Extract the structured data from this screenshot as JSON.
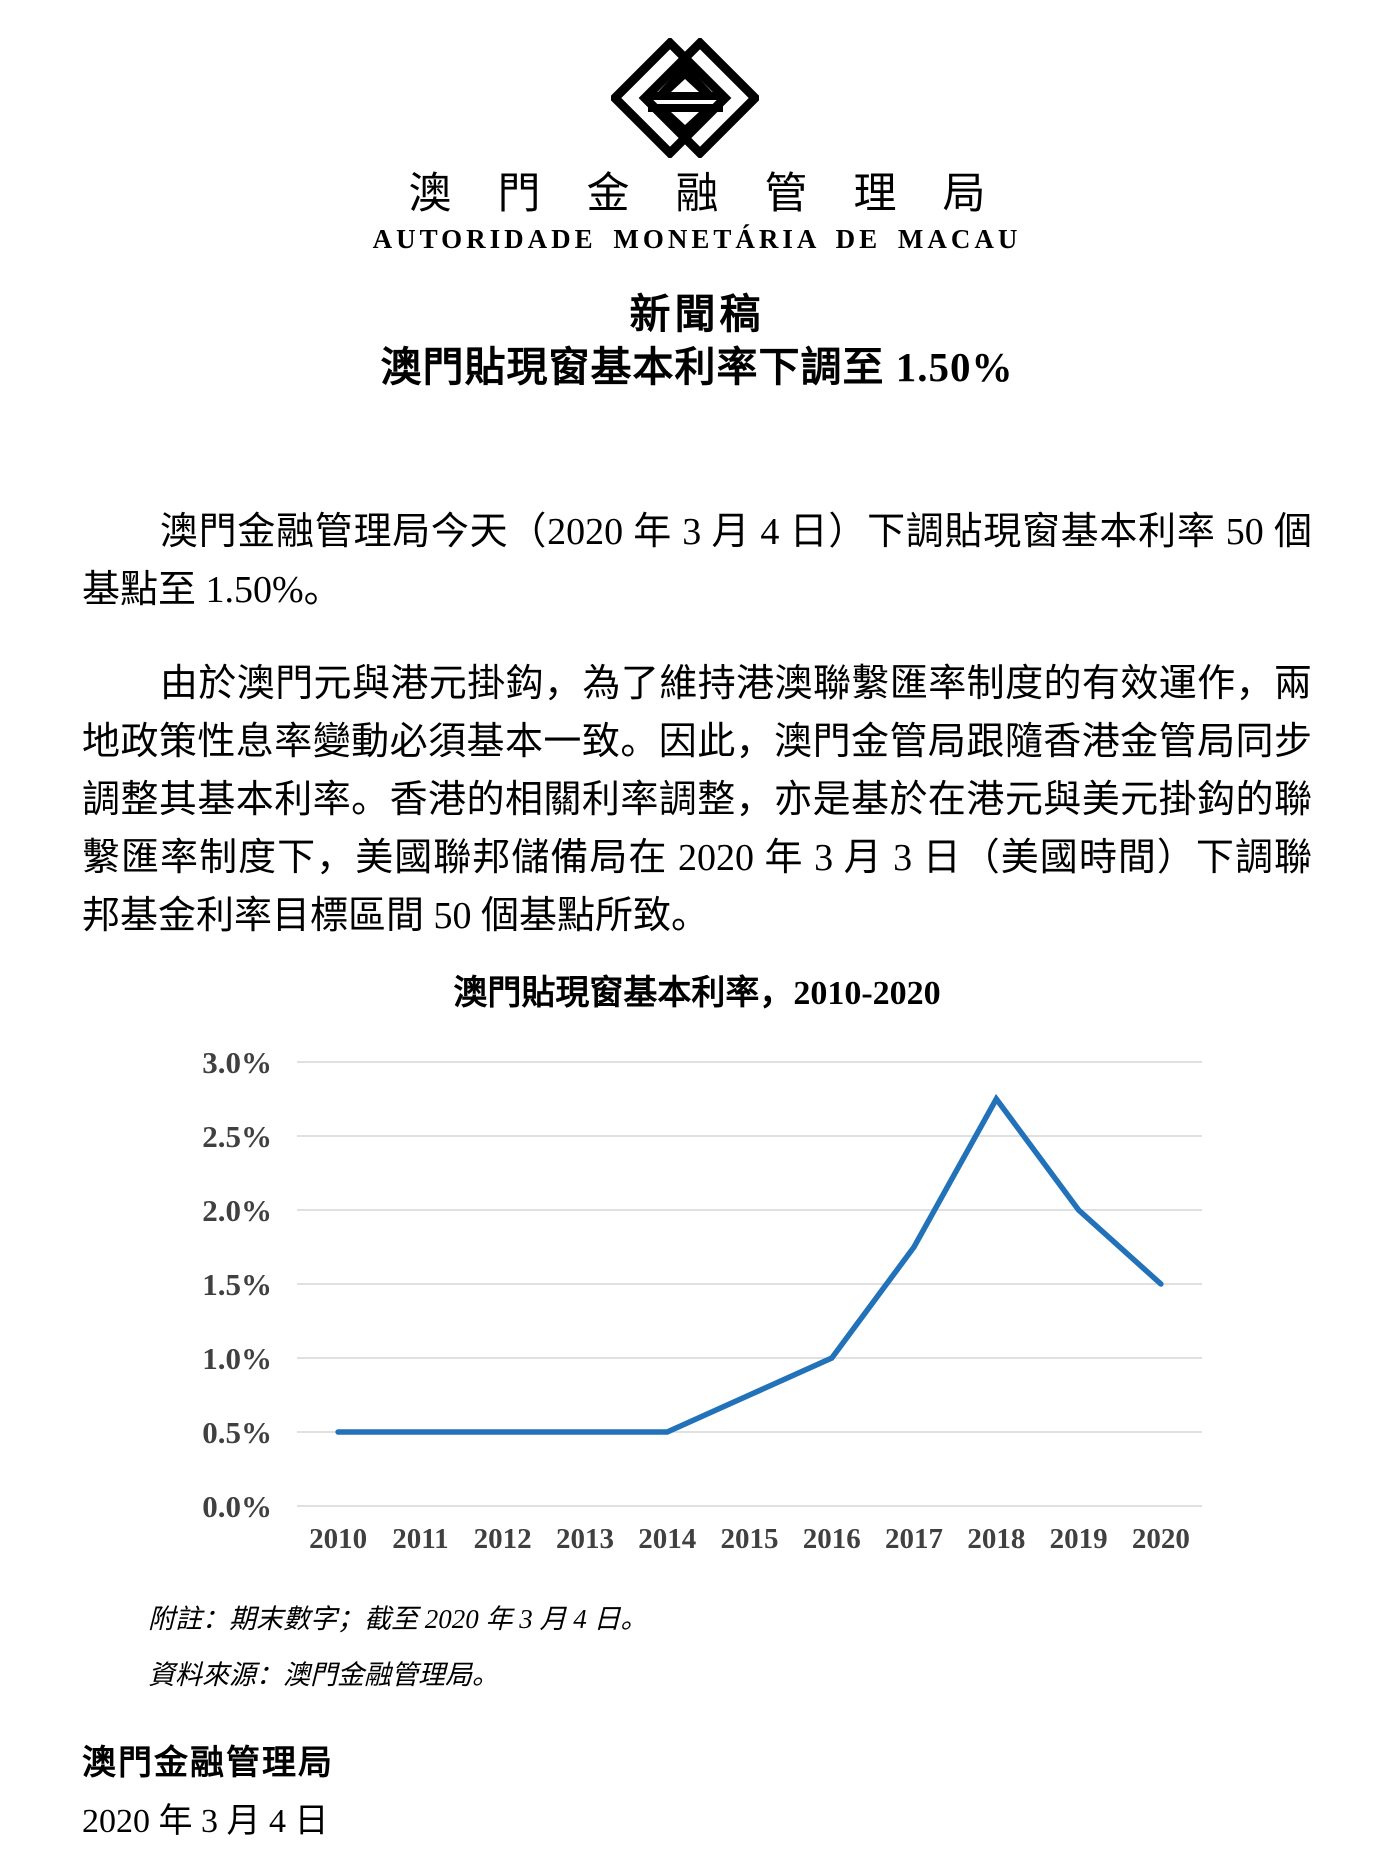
{
  "header": {
    "org_name_cn": "澳門金融管理局",
    "org_name_pt": "AUTORIDADE MONETÁRIA DE MACAU"
  },
  "title": {
    "heading": "新聞稿",
    "subheading": "澳門貼現窗基本利率下調至 1.50%"
  },
  "paragraphs": [
    "澳門金融管理局今天（2020 年 3 月 4 日）下調貼現窗基本利率 50 個基點至 1.50%。",
    "由於澳門元與港元掛鈎，為了維持港澳聯繫匯率制度的有效運作，兩地政策性息率變動必須基本一致。因此，澳門金管局跟隨香港金管局同步調整其基本利率。香港的相關利率調整，亦是基於在港元與美元掛鈎的聯繫匯率制度下，美國聯邦儲備局在 2020 年 3 月 3 日（美國時間）下調聯邦基金利率目標區間 50 個基點所致。"
  ],
  "chart_data": {
    "type": "line",
    "title": "澳門貼現窗基本利率，2010-2020",
    "categories": [
      "2010",
      "2011",
      "2012",
      "2013",
      "2014",
      "2015",
      "2016",
      "2017",
      "2018",
      "2019",
      "2020"
    ],
    "values": [
      0.5,
      0.5,
      0.5,
      0.5,
      0.5,
      0.75,
      1.0,
      1.75,
      2.75,
      2.0,
      1.5
    ],
    "series_name": "澳門貼現窗基本利率",
    "yticks": [
      "3.0%",
      "2.5%",
      "2.0%",
      "1.5%",
      "1.0%",
      "0.5%",
      "0.0%"
    ],
    "ylim": [
      0,
      3.0
    ],
    "xlabel": "",
    "ylabel": "",
    "grid": "horizontal",
    "legend": "none",
    "line_color": "#2172B8",
    "grid_color": "#D6D6D6",
    "tick_color": "#404040"
  },
  "notes": [
    "附註：期末數字；截至 2020 年 3 月 4 日。",
    "資料來源：澳門金融管理局。"
  ],
  "footer": {
    "org": "澳門金融管理局",
    "date": "2020 年 3 月 4 日"
  }
}
